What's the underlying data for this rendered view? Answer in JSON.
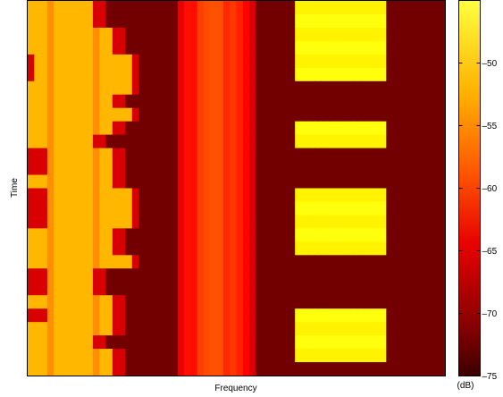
{
  "chart_data": {
    "type": "heatmap",
    "title": "",
    "xlabel": "Frequency",
    "ylabel": "Time",
    "x_ticks": [],
    "y_ticks": [],
    "colorbar": {
      "label": "(dB)",
      "min": -75,
      "max": -45,
      "ticks": [
        -75,
        -70,
        -65,
        -60,
        -55,
        -50
      ],
      "colormap": "hot"
    },
    "time_rows": 28,
    "frequency_columns": 64,
    "background_db": -73,
    "time_varying_band": {
      "freq_range": [
        0.0,
        0.245
      ],
      "level_db": -57,
      "right_edge_by_row": [
        0.16,
        0.16,
        0.21,
        0.21,
        0.245,
        0.245,
        0.245,
        0.21,
        0.245,
        0.21,
        0.16,
        0.21,
        0.21,
        0.21,
        0.245,
        0.245,
        0.245,
        0.21,
        0.21,
        0.245,
        0.16,
        0.16,
        0.21,
        0.21,
        0.21,
        0.16,
        0.21,
        0.21
      ],
      "left_edge_by_row": [
        0.0,
        0.0,
        0.0,
        0.0,
        0.02,
        0.02,
        0.0,
        0.0,
        0.0,
        0.0,
        0.0,
        0.04,
        0.04,
        0.0,
        0.04,
        0.04,
        0.04,
        0.0,
        0.0,
        0.0,
        0.04,
        0.04,
        0.0,
        0.04,
        0.0,
        0.0,
        0.0,
        0.0
      ]
    },
    "steady_band": {
      "freq_range": [
        0.36,
        0.54
      ],
      "peak_db": -62,
      "edge_db": -68
    },
    "pulsed_band": {
      "freq_range": [
        0.645,
        0.86
      ],
      "level_db": -53,
      "active_rows": [
        0,
        1,
        2,
        3,
        4,
        5,
        9,
        10,
        14,
        15,
        16,
        17,
        18,
        23,
        24,
        25,
        26
      ]
    }
  }
}
